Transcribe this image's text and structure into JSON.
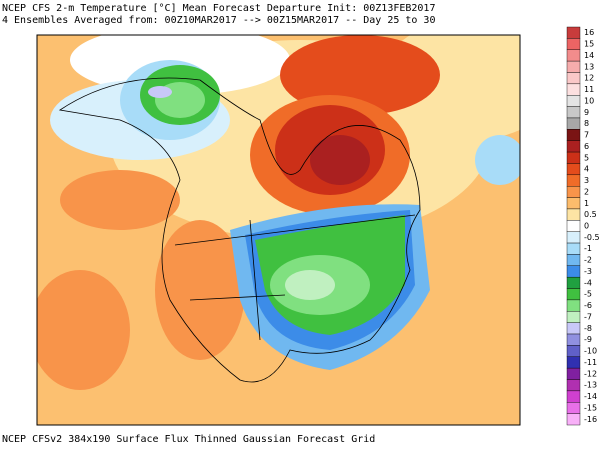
{
  "header": {
    "line1": "NCEP CFS 2-m Temperature [°C] Mean Forecast Departure Init: 00Z13FEB2017",
    "line2": "4 Ensembles Averaged from: 00Z10MAR2017 --> 00Z15MAR2017 -- Day 25 to 30"
  },
  "colorbar": {
    "labels": [
      "16",
      "15",
      "14",
      "13",
      "12",
      "11",
      "10",
      "9",
      "8",
      "7",
      "6",
      "5",
      "4",
      "3",
      "2",
      "1",
      "0.5",
      "0",
      "-0.5",
      "-1",
      "-2",
      "-3",
      "-4",
      "-5",
      "-6",
      "-7",
      "-8",
      "-9",
      "-10",
      "-11",
      "-12",
      "-13",
      "-14",
      "-15",
      "-16"
    ],
    "colors": [
      "#c83c3c",
      "#ec6464",
      "#f28c8c",
      "#f6acac",
      "#fac8c8",
      "#fce0e0",
      "#e4e4e4",
      "#c8c8c8",
      "#a8a8a8",
      "#7a1414",
      "#aa2020",
      "#cc3018",
      "#e44c1c",
      "#f06c28",
      "#f8944a",
      "#fcbc6c",
      "#fde4a4",
      "#ffffff",
      "#d8f0fc",
      "#a8dcf8",
      "#70b8f0",
      "#3c8ce8",
      "#20a040",
      "#40c040",
      "#80e080",
      "#c0f0c0",
      "#c8c8f8",
      "#9090e0",
      "#6060c8",
      "#3030b0",
      "#8020a0",
      "#b030b0",
      "#d040d0",
      "#e870e8",
      "#f8b0f8"
    ]
  },
  "footer": "NCEP CFSv2 384x190 Surface Flux Thinned Gaussian Forecast Grid"
}
